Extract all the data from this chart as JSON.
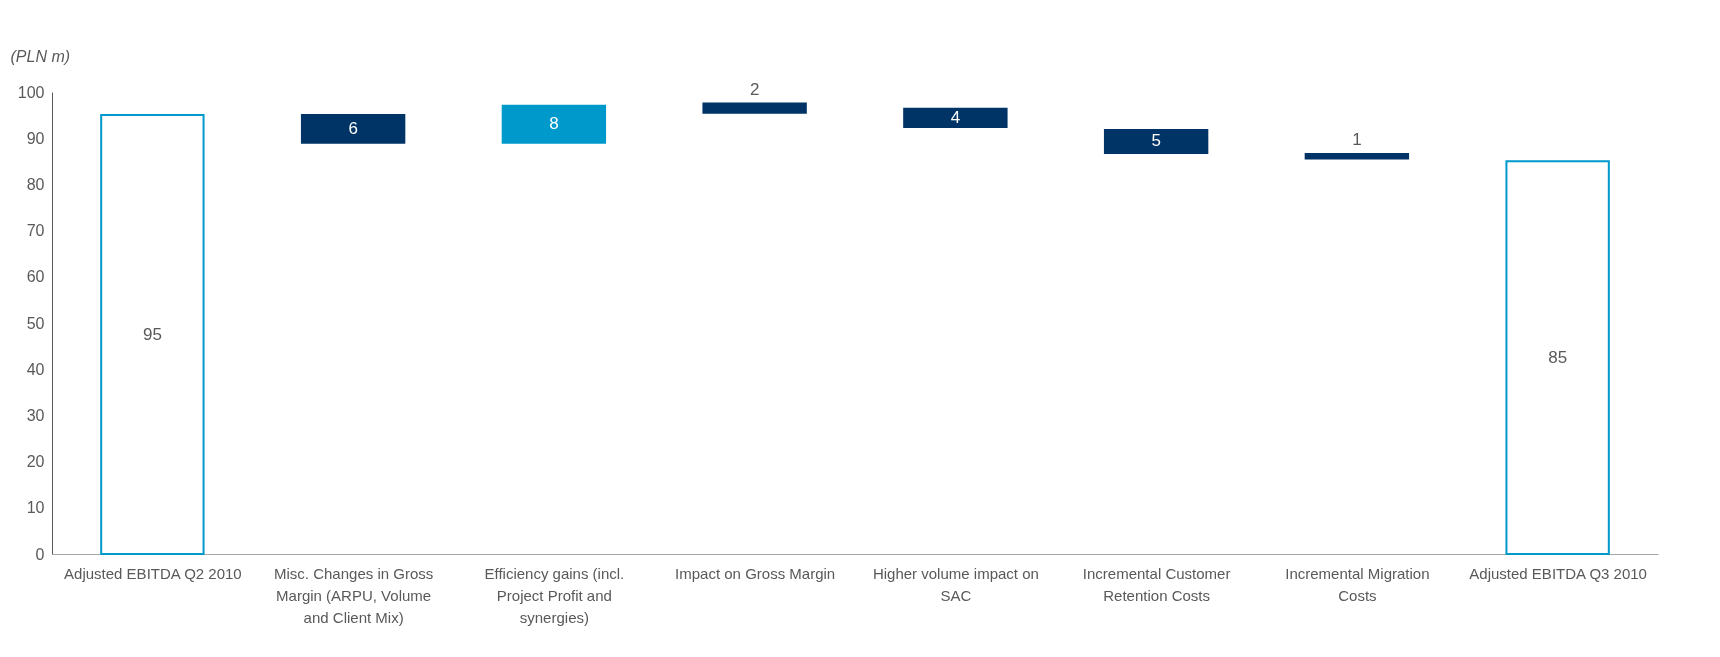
{
  "chart_data": {
    "type": "bar",
    "ylabel": "(PLN m)",
    "categories": [
      "Adjusted EBITDA Q2 2010",
      "Misc. Changes in Gross Margin (ARPU, Volume and Client Mix)",
      "Efficiency gains (incl. Project Profit and synergies)",
      "Impact on Gross Margin",
      "Higher volume impact on SAC",
      "Incremental Customer Retention Costs",
      "Incremental Migration Costs",
      "Adjusted EBITDA Q3 2010"
    ],
    "values": [
      95,
      -6,
      8,
      -2,
      -4,
      -5,
      -1,
      85
    ],
    "base": [
      null,
      95,
      89,
      97.5,
      96.4,
      91.8,
      86.6,
      null
    ],
    "colors": [
      "#0099cc",
      "#003366",
      "#0099cc",
      "#003366",
      "#003366",
      "#003366",
      "#003366",
      "#0099cc"
    ],
    "value_labels": [
      "95",
      "6",
      "8",
      "2",
      "4",
      "5",
      "1",
      "85"
    ],
    "ylim": [
      0,
      100
    ],
    "yticks": [
      0,
      10,
      20,
      30,
      40,
      50,
      60,
      70,
      80,
      90,
      100
    ],
    "grid": false
  }
}
